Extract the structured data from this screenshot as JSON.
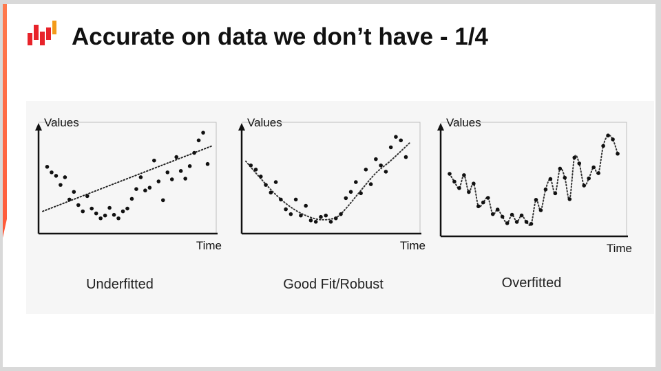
{
  "slide": {
    "title": "Accurate on data we don’t have - 1/4"
  },
  "colors": {
    "accent": "#ff6a3d",
    "logo_red": "#e8232a",
    "logo_orange": "#f39b1b",
    "ink": "#111111"
  },
  "icons": {
    "logo": "brand-logo-icon"
  },
  "chart_data": [
    {
      "type": "scatter",
      "panel_label": "Underfitted",
      "ylabel": "Values",
      "xlabel": "Time",
      "fit": "linear",
      "points": [
        [
          1,
          8.2
        ],
        [
          2,
          7.4
        ],
        [
          3,
          6.9
        ],
        [
          4,
          5.6
        ],
        [
          5,
          6.7
        ],
        [
          6,
          3.5
        ],
        [
          7,
          4.6
        ],
        [
          8,
          2.7
        ],
        [
          9,
          1.8
        ],
        [
          10,
          4.0
        ],
        [
          11,
          2.2
        ],
        [
          12,
          1.5
        ],
        [
          13,
          0.8
        ],
        [
          14,
          1.2
        ],
        [
          15,
          2.3
        ],
        [
          16,
          1.3
        ],
        [
          17,
          0.8
        ],
        [
          18,
          1.8
        ],
        [
          19,
          2.2
        ],
        [
          20,
          3.6
        ],
        [
          21,
          5.0
        ],
        [
          22,
          6.7
        ],
        [
          23,
          4.8
        ],
        [
          24,
          5.2
        ],
        [
          25,
          9.1
        ],
        [
          26,
          6.1
        ],
        [
          27,
          3.4
        ],
        [
          28,
          7.4
        ],
        [
          29,
          6.4
        ],
        [
          30,
          9.6
        ],
        [
          31,
          7.6
        ],
        [
          32,
          6.5
        ],
        [
          33,
          8.3
        ],
        [
          34,
          10.2
        ],
        [
          35,
          12.0
        ],
        [
          36,
          13.1
        ],
        [
          37,
          8.6
        ]
      ],
      "fit_line": [
        [
          0,
          1.8
        ],
        [
          38,
          11.2
        ]
      ],
      "xlim": [
        0,
        38
      ],
      "ylim": [
        -1,
        14
      ]
    },
    {
      "type": "scatter",
      "panel_label": "Good Fit/Robust",
      "ylabel": "Values",
      "xlabel": "Time",
      "fit": "smooth-curve",
      "points": [
        [
          1,
          8.4
        ],
        [
          2,
          7.8
        ],
        [
          3,
          6.8
        ],
        [
          4,
          5.6
        ],
        [
          5,
          4.5
        ],
        [
          6,
          6.0
        ],
        [
          7,
          3.5
        ],
        [
          8,
          2.1
        ],
        [
          9,
          1.4
        ],
        [
          10,
          3.5
        ],
        [
          11,
          1.2
        ],
        [
          12,
          2.6
        ],
        [
          13,
          0.5
        ],
        [
          14,
          0.3
        ],
        [
          15,
          1.0
        ],
        [
          16,
          1.2
        ],
        [
          17,
          0.3
        ],
        [
          18,
          0.8
        ],
        [
          19,
          1.4
        ],
        [
          20,
          3.7
        ],
        [
          21,
          4.6
        ],
        [
          22,
          6.0
        ],
        [
          23,
          4.4
        ],
        [
          24,
          7.8
        ],
        [
          25,
          5.7
        ],
        [
          26,
          9.3
        ],
        [
          27,
          8.4
        ],
        [
          28,
          7.5
        ],
        [
          29,
          11.0
        ],
        [
          30,
          12.5
        ],
        [
          31,
          12.0
        ],
        [
          32,
          9.6
        ]
      ],
      "fit_curve": [
        [
          0,
          9.0
        ],
        [
          3,
          6.5
        ],
        [
          6,
          4.2
        ],
        [
          9,
          2.4
        ],
        [
          12,
          1.2
        ],
        [
          15,
          0.6
        ],
        [
          18,
          0.9
        ],
        [
          20,
          2.2
        ],
        [
          23,
          4.8
        ],
        [
          26,
          7.3
        ],
        [
          29,
          9.1
        ],
        [
          33,
          11.8
        ]
      ],
      "xlim": [
        0,
        34
      ],
      "ylim": [
        -1,
        14
      ]
    },
    {
      "type": "line",
      "panel_label": "Overfitted",
      "ylabel": "Values",
      "xlabel": "Time",
      "fit": "interpolating-wiggle",
      "points": [
        [
          1,
          8.2
        ],
        [
          2,
          7.0
        ],
        [
          3,
          6.0
        ],
        [
          4,
          8.0
        ],
        [
          5,
          5.4
        ],
        [
          6,
          6.7
        ],
        [
          7,
          3.2
        ],
        [
          8,
          3.8
        ],
        [
          9,
          4.5
        ],
        [
          10,
          2.0
        ],
        [
          11,
          2.7
        ],
        [
          12,
          1.6
        ],
        [
          13,
          0.6
        ],
        [
          14,
          1.9
        ],
        [
          15,
          0.8
        ],
        [
          16,
          1.8
        ],
        [
          17,
          0.8
        ],
        [
          18,
          0.5
        ],
        [
          19,
          4.2
        ],
        [
          20,
          2.6
        ],
        [
          21,
          5.8
        ],
        [
          22,
          7.4
        ],
        [
          23,
          5.2
        ],
        [
          24,
          9.0
        ],
        [
          25,
          7.6
        ],
        [
          26,
          4.3
        ],
        [
          27,
          10.7
        ],
        [
          28,
          9.8
        ],
        [
          29,
          6.4
        ],
        [
          30,
          7.5
        ],
        [
          31,
          9.2
        ],
        [
          32,
          8.3
        ],
        [
          33,
          12.5
        ],
        [
          34,
          14.1
        ],
        [
          35,
          13.5
        ],
        [
          36,
          11.3
        ]
      ],
      "xlim": [
        0,
        37
      ],
      "ylim": [
        -1,
        15.5
      ]
    }
  ]
}
